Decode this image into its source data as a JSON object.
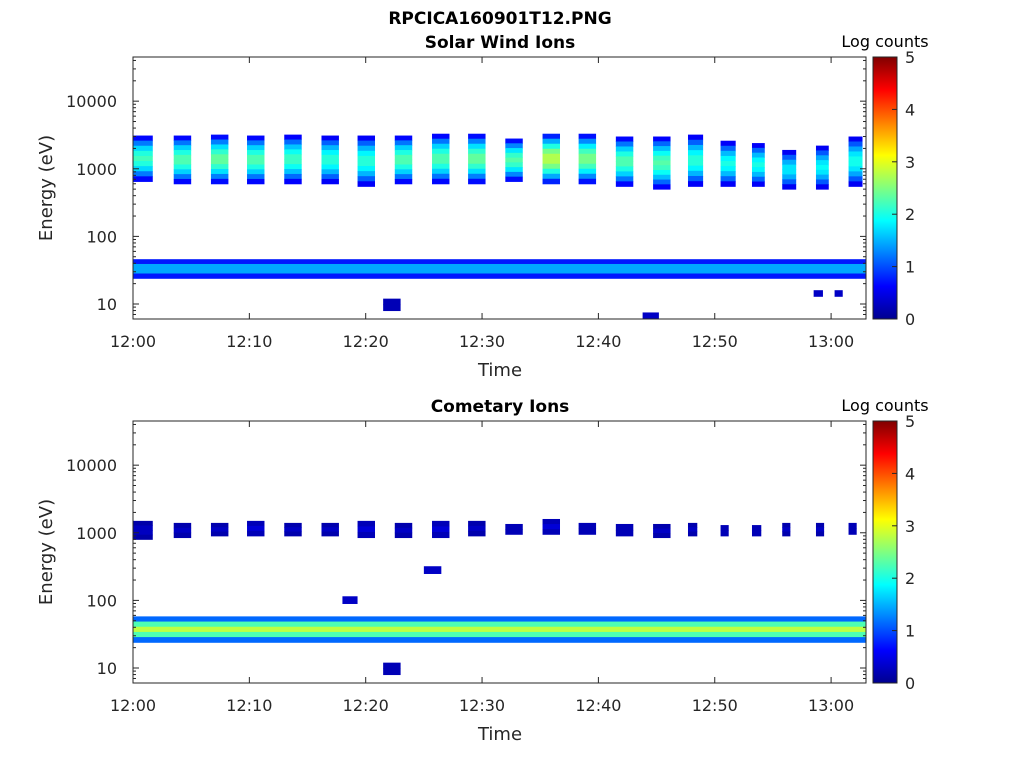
{
  "figure": {
    "title": "RPCICA160901T12.PNG"
  },
  "colors": {
    "cmap": [
      "#00008f",
      "#0000ff",
      "#0080ff",
      "#00ffff",
      "#80ff80",
      "#ffff00",
      "#ff8000",
      "#ff0000",
      "#800000"
    ]
  },
  "chart_data": [
    {
      "type": "heatmap",
      "title": "Solar Wind Ions",
      "xlabel": "Time",
      "ylabel": "Energy (eV)",
      "colorbar_label": "Log counts",
      "colorbar_ticks": [
        "0",
        "1",
        "2",
        "3",
        "4",
        "5"
      ],
      "clim": [
        0,
        5
      ],
      "x_ticks": [
        "12:00",
        "12:10",
        "12:20",
        "12:30",
        "12:40",
        "12:50",
        "13:00"
      ],
      "xlim": [
        "12:00",
        "13:03"
      ],
      "y_scale": "log",
      "y_ticks": [
        "10",
        "100",
        "1000",
        "10000"
      ],
      "ylim": [
        6,
        45000
      ],
      "grid": false,
      "cells": [
        {
          "t": [
            "12:00",
            "12:01.7"
          ],
          "e": [
            650,
            3100
          ],
          "peak": 2.2
        },
        {
          "t": [
            "12:03.5",
            "12:05"
          ],
          "e": [
            600,
            3100
          ],
          "peak": 2.3
        },
        {
          "t": [
            "12:06.7",
            "12:08.2"
          ],
          "e": [
            600,
            3200
          ],
          "peak": 2.4
        },
        {
          "t": [
            "12:09.8",
            "12:11.3"
          ],
          "e": [
            600,
            3100
          ],
          "peak": 2.3
        },
        {
          "t": [
            "12:13",
            "12:14.5"
          ],
          "e": [
            600,
            3200
          ],
          "peak": 2.2
        },
        {
          "t": [
            "12:16.2",
            "12:17.7"
          ],
          "e": [
            600,
            3100
          ],
          "peak": 2.1
        },
        {
          "t": [
            "12:19.3",
            "12:20.8"
          ],
          "e": [
            550,
            3100
          ],
          "peak": 2.1
        },
        {
          "t": [
            "12:22.5",
            "12:24"
          ],
          "e": [
            600,
            3100
          ],
          "peak": 2.3
        },
        {
          "t": [
            "12:25.7",
            "12:27.2"
          ],
          "e": [
            600,
            3300
          ],
          "peak": 2.3
        },
        {
          "t": [
            "12:28.8",
            "12:30.3"
          ],
          "e": [
            600,
            3300
          ],
          "peak": 2.4
        },
        {
          "t": [
            "12:32",
            "12:33.5"
          ],
          "e": [
            650,
            2800
          ],
          "peak": 2.3
        },
        {
          "t": [
            "12:35.2",
            "12:36.7"
          ],
          "e": [
            600,
            3300
          ],
          "peak": 2.8
        },
        {
          "t": [
            "12:38.3",
            "12:39.8"
          ],
          "e": [
            600,
            3300
          ],
          "peak": 2.5
        },
        {
          "t": [
            "12:41.5",
            "12:43"
          ],
          "e": [
            550,
            3000
          ],
          "peak": 2.3
        },
        {
          "t": [
            "12:44.7",
            "12:46.2"
          ],
          "e": [
            500,
            3000
          ],
          "peak": 2.3
        },
        {
          "t": [
            "12:47.7",
            "12:49"
          ],
          "e": [
            550,
            3200
          ],
          "peak": 2.1
        },
        {
          "t": [
            "12:50.5",
            "12:51.8"
          ],
          "e": [
            550,
            2600
          ],
          "peak": 2.0
        },
        {
          "t": [
            "12:53.2",
            "12:54.3"
          ],
          "e": [
            550,
            2400
          ],
          "peak": 2.0
        },
        {
          "t": [
            "12:55.8",
            "12:57"
          ],
          "e": [
            500,
            1900
          ],
          "peak": 1.8
        },
        {
          "t": [
            "12:58.7",
            "12:59.8"
          ],
          "e": [
            500,
            2200
          ],
          "peak": 1.9
        },
        {
          "t": [
            "13:01.5",
            "13:02.7"
          ],
          "e": [
            550,
            3000
          ],
          "peak": 2.0
        },
        {
          "t": [
            "12:00",
            "13:03"
          ],
          "e": [
            24,
            46
          ],
          "peak": 1.6
        },
        {
          "t": [
            "12:21.5",
            "12:23"
          ],
          "e": [
            8,
            12
          ],
          "peak": 0.3
        },
        {
          "t": [
            "12:43.8",
            "12:45.2"
          ],
          "e": [
            6,
            7.5
          ],
          "peak": 0.3
        },
        {
          "t": [
            "12:58.5",
            "12:59.3"
          ],
          "e": [
            13,
            16
          ],
          "peak": 0.3
        },
        {
          "t": [
            "13:00.3",
            "13:01"
          ],
          "e": [
            13,
            16
          ],
          "peak": 0.3
        }
      ]
    },
    {
      "type": "heatmap",
      "title": "Cometary Ions",
      "xlabel": "Time",
      "ylabel": "Energy (eV)",
      "colorbar_label": "Log counts",
      "colorbar_ticks": [
        "0",
        "1",
        "2",
        "3",
        "4",
        "5"
      ],
      "clim": [
        0,
        5
      ],
      "x_ticks": [
        "12:00",
        "12:10",
        "12:20",
        "12:30",
        "12:40",
        "12:50",
        "13:00"
      ],
      "xlim": [
        "12:00",
        "13:03"
      ],
      "y_scale": "log",
      "y_ticks": [
        "10",
        "100",
        "1000",
        "10000"
      ],
      "ylim": [
        6,
        45000
      ],
      "grid": false,
      "cells": [
        {
          "t": [
            "12:00",
            "12:01.7"
          ],
          "e": [
            800,
            1500
          ],
          "peak": 0.3
        },
        {
          "t": [
            "12:03.5",
            "12:05"
          ],
          "e": [
            850,
            1400
          ],
          "peak": 0.3
        },
        {
          "t": [
            "12:06.7",
            "12:08.2"
          ],
          "e": [
            900,
            1400
          ],
          "peak": 0.3
        },
        {
          "t": [
            "12:09.8",
            "12:11.3"
          ],
          "e": [
            900,
            1500
          ],
          "peak": 0.4
        },
        {
          "t": [
            "12:13",
            "12:14.5"
          ],
          "e": [
            900,
            1400
          ],
          "peak": 0.3
        },
        {
          "t": [
            "12:16.2",
            "12:17.7"
          ],
          "e": [
            900,
            1400
          ],
          "peak": 0.3
        },
        {
          "t": [
            "12:19.3",
            "12:20.8"
          ],
          "e": [
            850,
            1500
          ],
          "peak": 0.4
        },
        {
          "t": [
            "12:22.5",
            "12:24"
          ],
          "e": [
            850,
            1400
          ],
          "peak": 0.3
        },
        {
          "t": [
            "12:25.7",
            "12:27.2"
          ],
          "e": [
            850,
            1500
          ],
          "peak": 0.4
        },
        {
          "t": [
            "12:28.8",
            "12:30.3"
          ],
          "e": [
            900,
            1500
          ],
          "peak": 0.3
        },
        {
          "t": [
            "12:32",
            "12:33.5"
          ],
          "e": [
            950,
            1350
          ],
          "peak": 0.3
        },
        {
          "t": [
            "12:35.2",
            "12:36.7"
          ],
          "e": [
            950,
            1600
          ],
          "peak": 0.4
        },
        {
          "t": [
            "12:38.3",
            "12:39.8"
          ],
          "e": [
            950,
            1400
          ],
          "peak": 0.3
        },
        {
          "t": [
            "12:41.5",
            "12:43"
          ],
          "e": [
            900,
            1350
          ],
          "peak": 0.3
        },
        {
          "t": [
            "12:44.7",
            "12:46.2"
          ],
          "e": [
            850,
            1350
          ],
          "peak": 0.3
        },
        {
          "t": [
            "12:47.7",
            "12:48.5"
          ],
          "e": [
            900,
            1400
          ],
          "peak": 0.3
        },
        {
          "t": [
            "12:50.5",
            "12:51.2"
          ],
          "e": [
            900,
            1300
          ],
          "peak": 0.3
        },
        {
          "t": [
            "12:53.2",
            "12:54"
          ],
          "e": [
            900,
            1300
          ],
          "peak": 0.3
        },
        {
          "t": [
            "12:55.8",
            "12:56.5"
          ],
          "e": [
            900,
            1400
          ],
          "peak": 0.3
        },
        {
          "t": [
            "12:58.7",
            "12:59.4"
          ],
          "e": [
            900,
            1400
          ],
          "peak": 0.3
        },
        {
          "t": [
            "13:01.5",
            "13:02.2"
          ],
          "e": [
            950,
            1400
          ],
          "peak": 0.3
        },
        {
          "t": [
            "12:00",
            "13:03"
          ],
          "e": [
            24,
            58
          ],
          "peak": 2.8
        },
        {
          "t": [
            "12:21.5",
            "12:23"
          ],
          "e": [
            8,
            12
          ],
          "peak": 0.3
        },
        {
          "t": [
            "12:18",
            "12:19.3"
          ],
          "e": [
            90,
            115
          ],
          "peak": 0.3
        },
        {
          "t": [
            "12:25",
            "12:26.5"
          ],
          "e": [
            250,
            320
          ],
          "peak": 0.3
        }
      ]
    }
  ]
}
